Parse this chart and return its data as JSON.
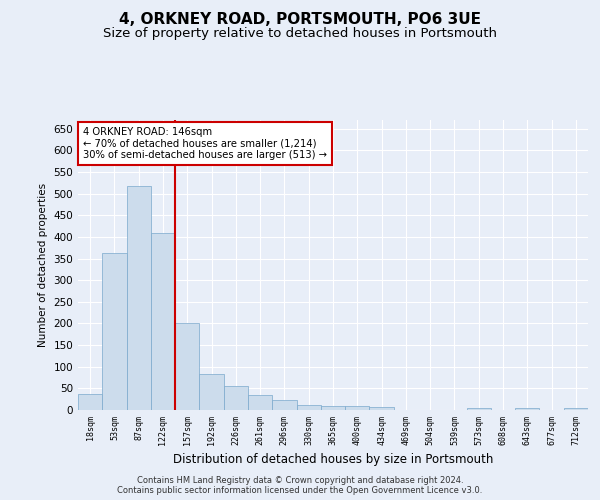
{
  "title": "4, ORKNEY ROAD, PORTSMOUTH, PO6 3UE",
  "subtitle": "Size of property relative to detached houses in Portsmouth",
  "xlabel": "Distribution of detached houses by size in Portsmouth",
  "ylabel": "Number of detached properties",
  "bar_color": "#ccdcec",
  "bar_edge_color": "#7aa8cc",
  "vline_color": "#cc0000",
  "vline_x": 3.5,
  "annotation_text_line1": "4 ORKNEY ROAD: 146sqm",
  "annotation_text_line2": "← 70% of detached houses are smaller (1,214)",
  "annotation_text_line3": "30% of semi-detached houses are larger (513) →",
  "annotation_box_color": "#ffffff",
  "annotation_box_edge": "#cc0000",
  "footer_line1": "Contains HM Land Registry data © Crown copyright and database right 2024.",
  "footer_line2": "Contains public sector information licensed under the Open Government Licence v3.0.",
  "categories": [
    "18sqm",
    "53sqm",
    "87sqm",
    "122sqm",
    "157sqm",
    "192sqm",
    "226sqm",
    "261sqm",
    "296sqm",
    "330sqm",
    "365sqm",
    "400sqm",
    "434sqm",
    "469sqm",
    "504sqm",
    "539sqm",
    "573sqm",
    "608sqm",
    "643sqm",
    "677sqm",
    "712sqm"
  ],
  "values": [
    38,
    363,
    517,
    410,
    201,
    83,
    55,
    35,
    22,
    12,
    10,
    10,
    8,
    0,
    0,
    0,
    5,
    0,
    5,
    0,
    5
  ],
  "ylim": [
    0,
    670
  ],
  "yticks": [
    0,
    50,
    100,
    150,
    200,
    250,
    300,
    350,
    400,
    450,
    500,
    550,
    600,
    650
  ],
  "background_color": "#e8eef8",
  "plot_background": "#e8eef8",
  "title_fontsize": 11,
  "subtitle_fontsize": 9.5
}
